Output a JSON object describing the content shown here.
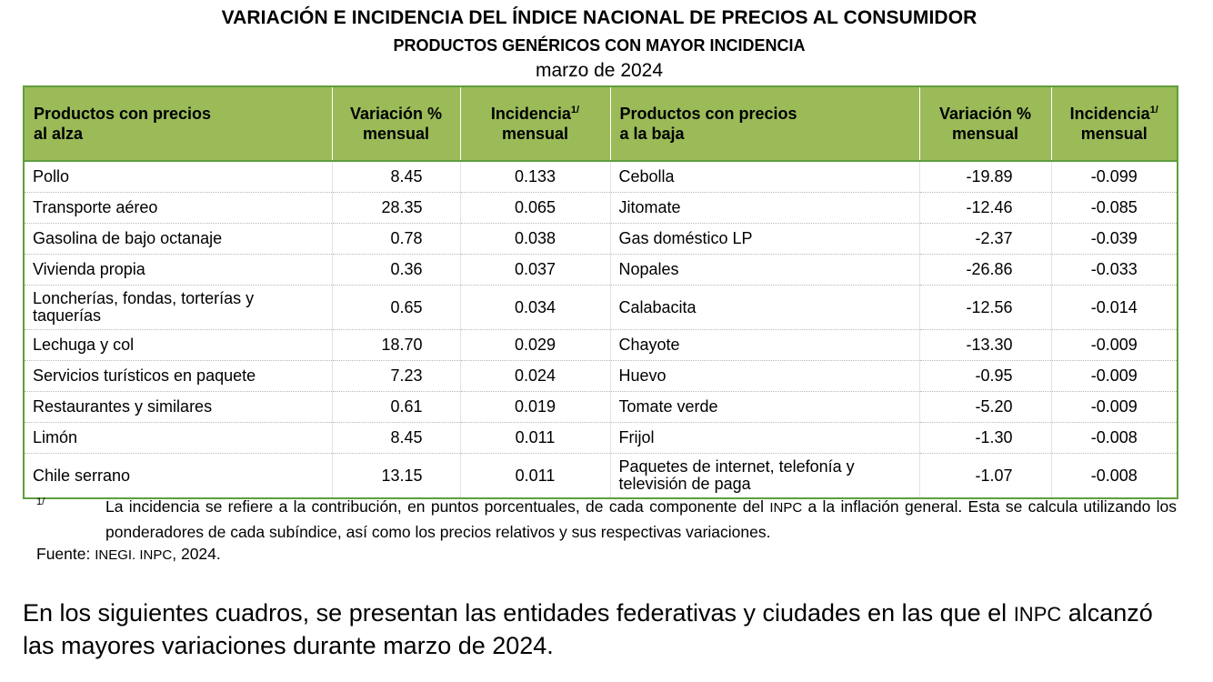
{
  "header": {
    "title": "VARIACIÓN E INCIDENCIA DEL ÍNDICE NACIONAL DE PRECIOS AL CONSUMIDOR",
    "subtitle": "PRODUCTOS GENÉRICOS CON MAYOR INCIDENCIA",
    "period": "marzo de 2024"
  },
  "table": {
    "columns": {
      "up_product_l1": "Productos con precios",
      "up_product_l2": "al alza",
      "variation_l1": "Variación %",
      "variation_l2": "mensual",
      "incidence_l1": "Incidencia",
      "incidence_sup": "1/",
      "incidence_l2": "mensual",
      "down_product_l1": "Productos con precios",
      "down_product_l2": "a la baja"
    },
    "rows": [
      {
        "up": "Pollo",
        "up_var": "8.45",
        "up_inc": "0.133",
        "down": "Cebolla",
        "down_var": "-19.89",
        "down_inc": "-0.099"
      },
      {
        "up": "Transporte aéreo",
        "up_var": "28.35",
        "up_inc": "0.065",
        "down": "Jitomate",
        "down_var": "-12.46",
        "down_inc": "-0.085"
      },
      {
        "up": "Gasolina de bajo octanaje",
        "up_var": "0.78",
        "up_inc": "0.038",
        "down": "Gas doméstico LP",
        "down_var": "-2.37",
        "down_inc": "-0.039"
      },
      {
        "up": "Vivienda propia",
        "up_var": "0.36",
        "up_inc": "0.037",
        "down": "Nopales",
        "down_var": "-26.86",
        "down_inc": "-0.033"
      },
      {
        "up": "Loncherías, fondas, torterías y taquerías",
        "up_var": "0.65",
        "up_inc": "0.034",
        "down": "Calabacita",
        "down_var": "-12.56",
        "down_inc": "-0.014"
      },
      {
        "up": "Lechuga y col",
        "up_var": "18.70",
        "up_inc": "0.029",
        "down": "Chayote",
        "down_var": "-13.30",
        "down_inc": "-0.009"
      },
      {
        "up": "Servicios turísticos en paquete",
        "up_var": "7.23",
        "up_inc": "0.024",
        "down": "Huevo",
        "down_var": "-0.95",
        "down_inc": "-0.009"
      },
      {
        "up": "Restaurantes y similares",
        "up_var": "0.61",
        "up_inc": "0.019",
        "down": "Tomate verde",
        "down_var": "-5.20",
        "down_inc": "-0.009"
      },
      {
        "up": "Limón",
        "up_var": "8.45",
        "up_inc": "0.011",
        "down": "Frijol",
        "down_var": "-1.30",
        "down_inc": "-0.008"
      },
      {
        "up": "Chile serrano",
        "up_var": "13.15",
        "up_inc": "0.011",
        "down": "Paquetes de internet, telefonía y televisión de paga",
        "down_var": "-1.07",
        "down_inc": "-0.008"
      }
    ]
  },
  "footnote": {
    "mark": "1/",
    "text_a": "La incidencia se refiere a la contribución, en puntos porcentuales, de cada componente del ",
    "abbr": "INPC",
    "text_b": " a la inflación general. Esta se calcula utilizando los ponderadores de cada subíndice, así como los precios relativos y sus respectivas variaciones."
  },
  "source": {
    "label": "Fuente: ",
    "org": "INEGI. INPC",
    "year": ", 2024."
  },
  "paragraph": {
    "text_a": "En los siguientes cuadros, se presentan las entidades federativas y ciudades en las que el ",
    "abbr": "INPC",
    "text_b": " alcanzó las mayores variaciones durante marzo de 2024."
  }
}
